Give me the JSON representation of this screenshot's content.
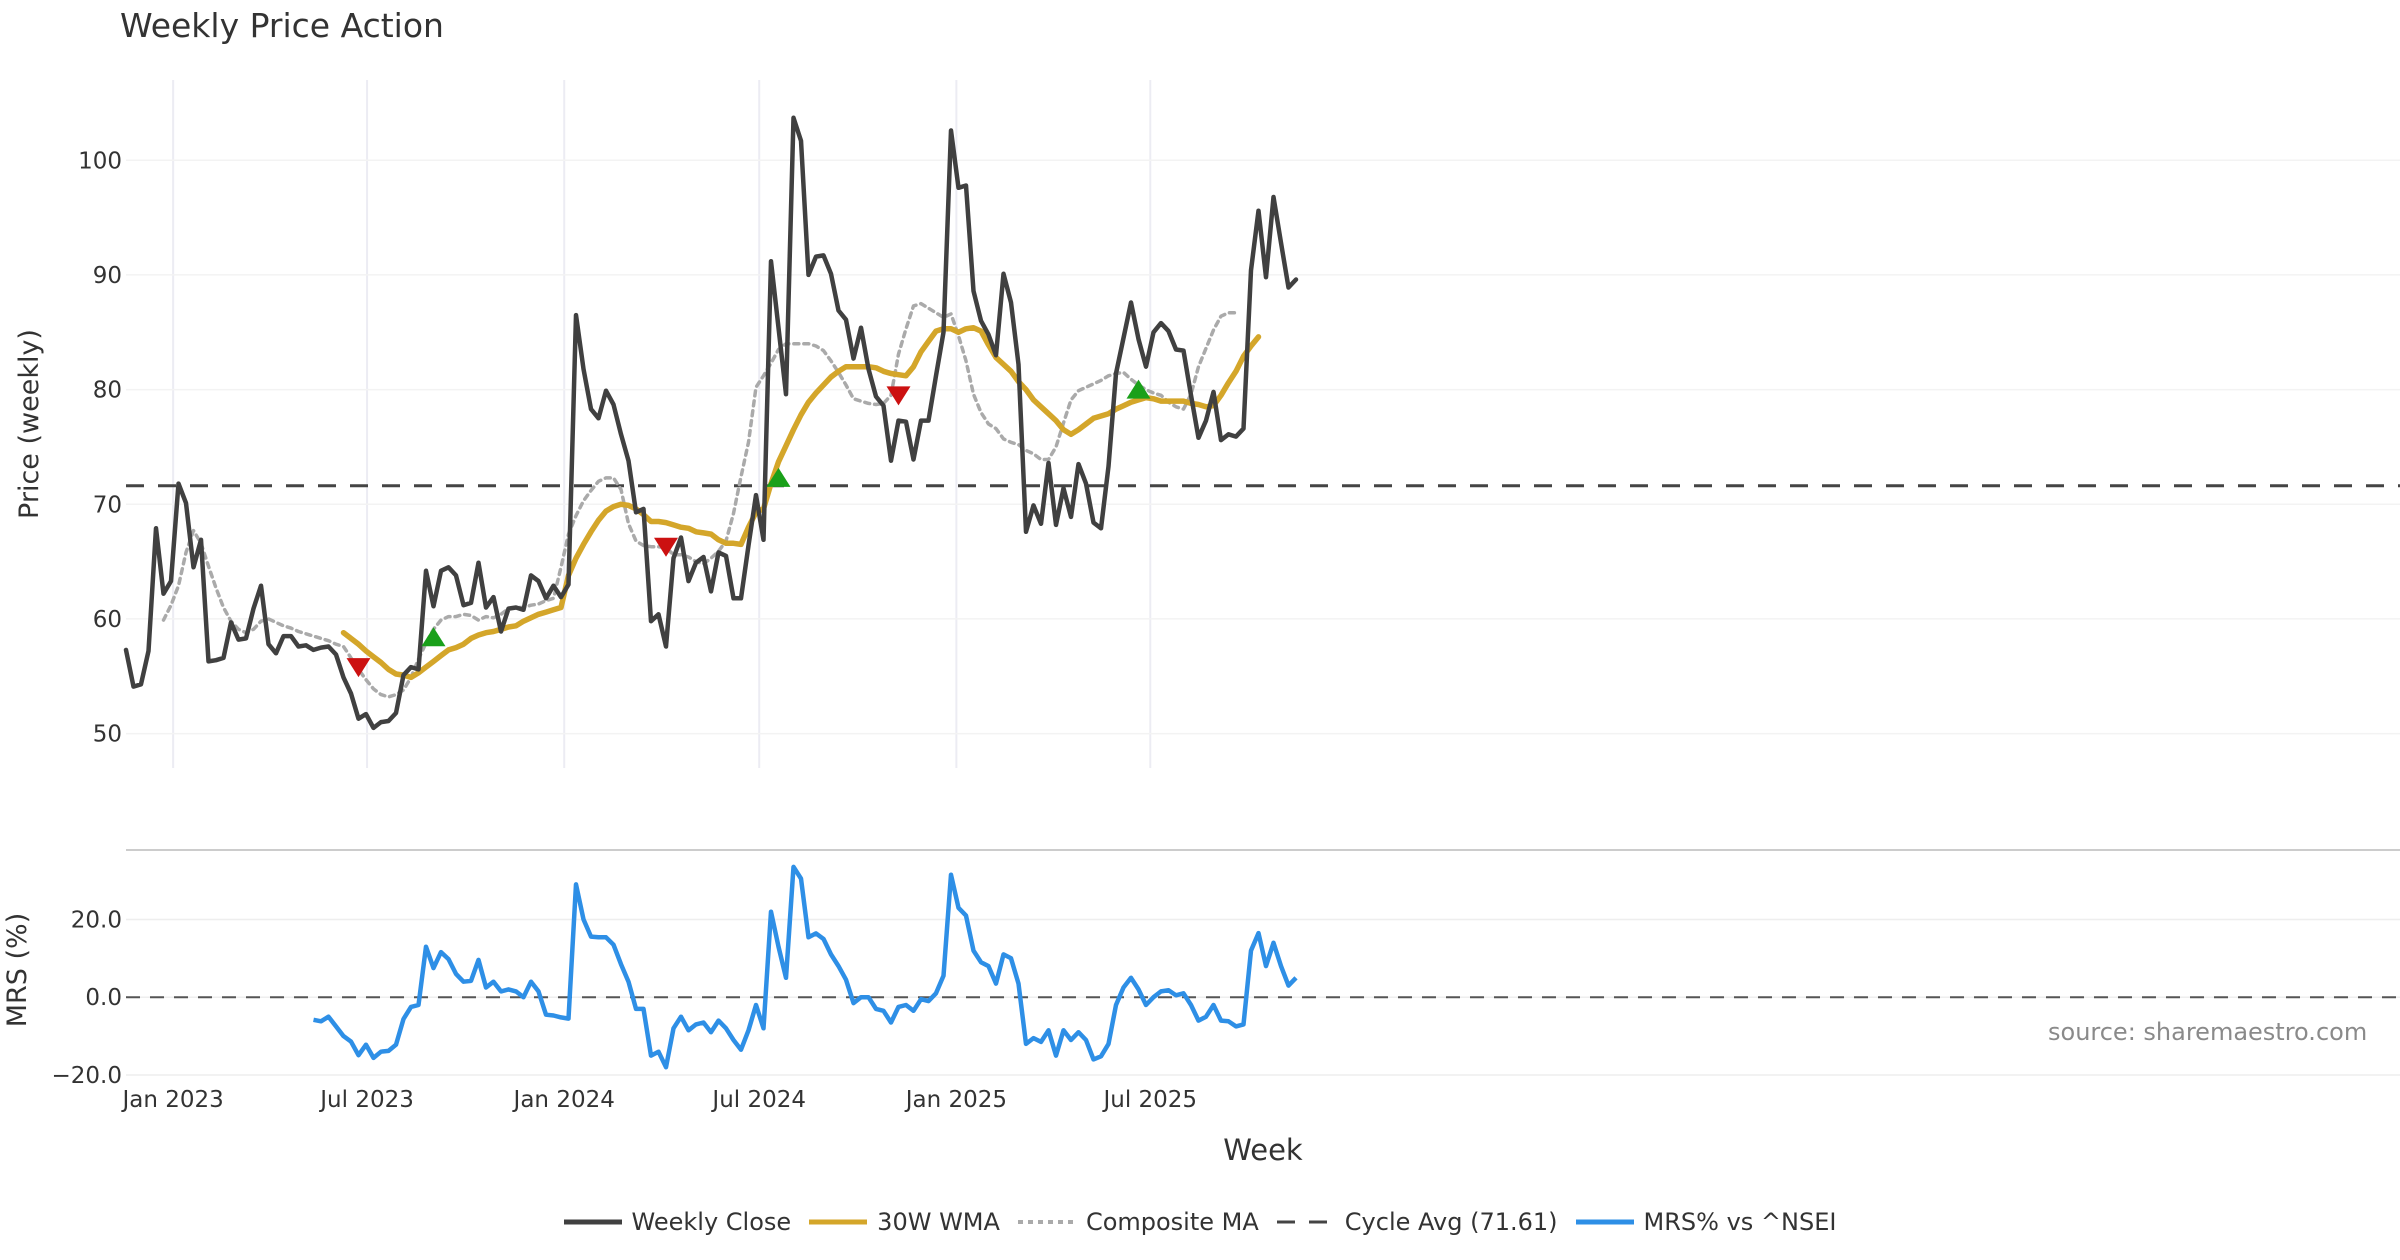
{
  "chart_data": {
    "title": "Weekly Price Action",
    "source_note": "source: sharemaestro.com",
    "x_axis": {
      "label": "Week",
      "ticks": [
        "Jan 2023",
        "Jul 2023",
        "Jan 2024",
        "Jul 2024",
        "Jan 2025",
        "Jul 2025"
      ],
      "start_date": "2022-11-18",
      "interval_days": 7
    },
    "panels": [
      {
        "name": "price",
        "type": "line",
        "ylabel": "Price (weekly)",
        "ylim": [
          47,
          107
        ],
        "yticks": [
          50,
          60,
          70,
          80,
          90,
          100
        ],
        "series": [
          {
            "name": "Weekly Close",
            "color": "#404040",
            "style": "solid",
            "start_index": 0,
            "values": [
              57.3,
              54.1,
              54.3,
              57.2,
              67.9,
              62.2,
              63.3,
              71.8,
              70.1,
              64.5,
              66.9,
              56.3,
              56.4,
              56.6,
              59.7,
              58.2,
              58.3,
              60.9,
              62.9,
              57.8,
              57.0,
              58.5,
              58.5,
              57.6,
              57.7,
              57.3,
              57.5,
              57.6,
              56.9,
              54.9,
              53.5,
              51.3,
              51.7,
              50.5,
              51.0,
              51.1,
              51.8,
              55.1,
              55.8,
              55.6,
              64.2,
              61.1,
              64.2,
              64.5,
              63.8,
              61.2,
              61.4,
              64.9,
              61.0,
              61.9,
              58.9,
              60.9,
              61.0,
              60.8,
              63.8,
              63.3,
              61.8,
              62.9,
              61.9,
              63.0,
              86.5,
              81.8,
              78.3,
              77.5,
              79.9,
              78.7,
              76.1,
              73.8,
              69.3,
              69.6,
              59.8,
              60.4,
              57.6,
              65.3,
              67.1,
              63.3,
              64.9,
              65.4,
              62.4,
              65.8,
              65.5,
              61.8,
              61.8,
              66.4,
              70.8,
              66.9,
              91.2,
              85.4,
              79.6,
              103.7,
              101.7,
              90.0,
              91.6,
              91.7,
              90.1,
              86.9,
              86.1,
              82.7,
              85.4,
              81.8,
              79.4,
              78.6,
              73.8,
              77.3,
              77.2,
              73.9,
              77.3,
              77.3,
              81.2,
              85.0,
              102.6,
              97.6,
              97.8,
              88.6,
              86.0,
              84.8,
              83.0,
              90.1,
              87.6,
              82.2,
              67.6,
              69.9,
              68.3,
              73.6,
              68.2,
              71.4,
              68.9,
              73.5,
              71.8,
              68.4,
              67.9,
              73.3,
              81.4,
              84.5,
              87.6,
              84.4,
              82.0,
              85.0,
              85.8,
              85.1,
              83.5,
              83.4,
              79.5,
              75.8,
              77.3,
              79.8,
              75.6,
              76.1,
              75.9,
              76.6,
              90.4,
              95.6,
              89.8,
              96.8,
              92.8,
              88.9,
              89.6
            ]
          },
          {
            "name": "30W WMA",
            "color": "#d4a62a",
            "style": "solid",
            "start_index": 29,
            "values": [
              58.8,
              58.3,
              57.8,
              57.2,
              56.7,
              56.2,
              55.6,
              55.2,
              55.1,
              54.9,
              55.3,
              55.8,
              56.3,
              56.8,
              57.3,
              57.5,
              57.8,
              58.3,
              58.6,
              58.8,
              58.9,
              59.1,
              59.3,
              59.4,
              59.8,
              60.1,
              60.4,
              60.6,
              60.8,
              61.0,
              63.8,
              65.3,
              66.5,
              67.6,
              68.6,
              69.4,
              69.8,
              70.0,
              69.9,
              69.6,
              69.1,
              68.5,
              68.5,
              68.4,
              68.2,
              68.0,
              67.9,
              67.6,
              67.5,
              67.4,
              66.9,
              66.6,
              66.6,
              66.5,
              68.0,
              69.3,
              69.6,
              71.8,
              73.7,
              75.1,
              76.5,
              77.8,
              78.9,
              79.7,
              80.4,
              81.1,
              81.6,
              82.0,
              82.0,
              82.0,
              82.0,
              81.9,
              81.6,
              81.4,
              81.3,
              81.2,
              82.0,
              83.3,
              84.2,
              85.1,
              85.3,
              85.3,
              85.0,
              85.3,
              85.4,
              85.1,
              83.9,
              82.8,
              82.2,
              81.6,
              80.7,
              80.0,
              79.1,
              78.5,
              77.9,
              77.3,
              76.5,
              76.1,
              76.5,
              77.0,
              77.5,
              77.7,
              77.9,
              78.3,
              78.6,
              78.9,
              79.1,
              79.3,
              79.2,
              79.0,
              79.0,
              79.0,
              79.0,
              78.8,
              78.7,
              78.5,
              78.6,
              79.5,
              80.6,
              81.6,
              82.9,
              83.8,
              84.6
            ]
          },
          {
            "name": "Composite MA",
            "color": "#aaaaaa",
            "style": "dotted",
            "start_index": 5,
            "values": [
              59.9,
              61.2,
              62.9,
              65.8,
              67.7,
              66.6,
              64.6,
              62.7,
              61.0,
              59.8,
              59.1,
              58.8,
              59.1,
              59.8,
              60.0,
              59.7,
              59.4,
              59.2,
              58.9,
              58.7,
              58.5,
              58.3,
              58.1,
              57.8,
              57.6,
              56.6,
              55.6,
              54.7,
              53.9,
              53.4,
              53.2,
              53.4,
              53.8,
              54.9,
              56.5,
              57.9,
              59.1,
              59.9,
              60.2,
              60.2,
              60.4,
              60.3,
              59.9,
              60.2,
              60.1,
              60.4,
              60.9,
              61.0,
              61.0,
              61.2,
              61.3,
              61.6,
              61.8,
              64.5,
              67.4,
              69.0,
              70.3,
              71.2,
              72.0,
              72.3,
              72.3,
              71.3,
              68.3,
              66.8,
              66.4,
              66.3,
              66.3,
              66.2,
              65.6,
              65.6,
              65.4,
              65.0,
              64.8,
              65.3,
              65.9,
              66.8,
              69.2,
              72.4,
              75.4,
              80.2,
              81.2,
              82.3,
              83.5,
              84.0,
              84.0,
              84.0,
              84.0,
              83.8,
              83.4,
              82.5,
              81.5,
              80.4,
              79.2,
              79.0,
              78.8,
              78.7,
              78.8,
              79.5,
              83.1,
              85.3,
              87.3,
              87.5,
              87.1,
              86.7,
              86.3,
              86.6,
              84.7,
              82.5,
              79.6,
              78.0,
              77.0,
              76.6,
              75.7,
              75.4,
              75.2,
              74.7,
              74.4,
              73.9,
              73.9,
              75.0,
              77.1,
              79.1,
              79.9,
              80.2,
              80.5,
              80.8,
              81.2,
              81.4,
              81.5,
              80.9,
              80.4,
              80.0,
              79.7,
              79.5,
              78.9,
              78.5,
              78.3,
              79.6,
              82.0,
              83.6,
              85.2,
              86.4,
              86.7,
              86.7
            ]
          },
          {
            "name": "Cycle Avg (71.61)",
            "color": "#444444",
            "style": "dashed",
            "value": 71.61
          }
        ],
        "markers": [
          {
            "type": "sell",
            "color": "#cc1111",
            "index": 31,
            "value": 55.8
          },
          {
            "type": "buy",
            "color": "#1aa01a",
            "index": 41,
            "value": 58.4
          },
          {
            "type": "sell",
            "color": "#cc1111",
            "index": 72,
            "value": 66.3
          },
          {
            "type": "buy",
            "color": "#1aa01a",
            "index": 87,
            "value": 72.3
          },
          {
            "type": "sell",
            "color": "#cc1111",
            "index": 103,
            "value": 79.5
          },
          {
            "type": "buy",
            "color": "#1aa01a",
            "index": 135,
            "value": 80.0
          }
        ]
      },
      {
        "name": "mrs",
        "type": "line",
        "ylabel": "MRS (%)",
        "ylim": [
          -20,
          34
        ],
        "yticks": [
          "20.0",
          "0.0",
          "−20.0"
        ],
        "ytick_values": [
          20,
          0,
          -20
        ],
        "reference_line": 0,
        "series": [
          {
            "name": "MRS% vs ^NSEI",
            "color": "#2e8fe6",
            "style": "solid",
            "start_index": 25,
            "values": [
              -5.8,
              -6.2,
              -5.0,
              -7.5,
              -10.0,
              -11.4,
              -14.9,
              -12.2,
              -15.6,
              -14.0,
              -13.8,
              -12.2,
              -5.6,
              -2.5,
              -2.0,
              13.0,
              7.5,
              11.6,
              9.8,
              6.0,
              4.0,
              4.2,
              9.6,
              2.5,
              4.0,
              1.5,
              2.0,
              1.5,
              0.0,
              4.0,
              1.5,
              -4.5,
              -4.7,
              -5.2,
              -5.5,
              29.0,
              20.0,
              15.6,
              15.4,
              15.4,
              13.5,
              8.5,
              4.0,
              -3.0,
              -3.0,
              -15.0,
              -14.0,
              -18.0,
              -8.0,
              -5.0,
              -8.5,
              -7.0,
              -6.5,
              -9.0,
              -6.0,
              -8.0,
              -11.0,
              -13.5,
              -8.5,
              -2.0,
              -8.0,
              22.0,
              13.0,
              5.0,
              33.5,
              30.5,
              15.4,
              16.4,
              15.0,
              11.0,
              8.0,
              4.5,
              -1.5,
              0.0,
              0.0,
              -3.0,
              -3.5,
              -6.5,
              -2.5,
              -2.0,
              -3.5,
              -0.5,
              -1.0,
              1.0,
              5.5,
              31.5,
              23.0,
              21.0,
              12.0,
              9.0,
              8.0,
              3.5,
              11.0,
              10.0,
              3.5,
              -12.0,
              -10.5,
              -11.5,
              -8.5,
              -15.0,
              -8.5,
              -11.0,
              -9.0,
              -11.0,
              -16.0,
              -15.2,
              -12.0,
              -2.0,
              2.5,
              5.0,
              2.0,
              -2.0,
              0.0,
              1.5,
              1.8,
              0.5,
              1.0,
              -2.0,
              -6.0,
              -5.0,
              -2.0,
              -6.0,
              -6.2,
              -7.5,
              -7.0,
              12.0,
              16.5,
              8.0,
              14.0,
              8.0,
              3.0,
              5.0
            ]
          }
        ]
      }
    ],
    "legend": {
      "placement": "bottom-center",
      "entries": [
        {
          "label": "Weekly Close",
          "color": "#404040",
          "style": "solid"
        },
        {
          "label": "30W WMA",
          "color": "#d4a62a",
          "style": "solid"
        },
        {
          "label": "Composite MA",
          "color": "#aaaaaa",
          "style": "dotted"
        },
        {
          "label": "Cycle Avg (71.61)",
          "color": "#444444",
          "style": "dashed"
        },
        {
          "label": "MRS% vs ^NSEI",
          "color": "#2e8fe6",
          "style": "solid"
        }
      ]
    }
  }
}
